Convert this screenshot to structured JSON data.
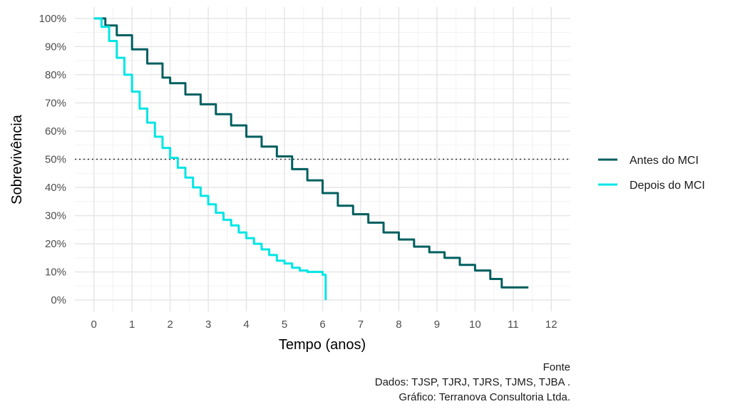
{
  "chart_data": {
    "type": "line",
    "xlabel": "Tempo (anos)",
    "ylabel": "Sobrevivência",
    "xlim": [
      -0.5,
      12.5
    ],
    "ylim": [
      -0.04,
      1.04
    ],
    "x_ticks": [
      "0",
      "1",
      "2",
      "3",
      "4",
      "5",
      "6",
      "7",
      "8",
      "9",
      "10",
      "11",
      "12"
    ],
    "y_ticks": [
      "0%",
      "10%",
      "20%",
      "30%",
      "40%",
      "50%",
      "60%",
      "70%",
      "80%",
      "90%",
      "100%"
    ],
    "reference_line": {
      "y": 0.5,
      "style": "dotted",
      "color": "#333333"
    },
    "grid": true,
    "legend_position": "right",
    "series": [
      {
        "name": "Antes do MCI",
        "color": "#005f5f",
        "x": [
          0,
          0.3,
          0.6,
          1.0,
          1.4,
          1.8,
          2.0,
          2.4,
          2.8,
          3.2,
          3.6,
          4.0,
          4.4,
          4.8,
          5.2,
          5.6,
          6.0,
          6.4,
          6.8,
          7.2,
          7.6,
          8.0,
          8.4,
          8.8,
          9.2,
          9.6,
          10.0,
          10.4,
          10.7,
          11.0,
          11.4
        ],
        "y": [
          1.0,
          0.975,
          0.94,
          0.89,
          0.84,
          0.79,
          0.77,
          0.73,
          0.695,
          0.66,
          0.62,
          0.58,
          0.545,
          0.51,
          0.465,
          0.425,
          0.38,
          0.335,
          0.305,
          0.275,
          0.24,
          0.215,
          0.19,
          0.17,
          0.15,
          0.125,
          0.105,
          0.075,
          0.045,
          0.045,
          0.045
        ]
      },
      {
        "name": "Depois do MCI",
        "color": "#00e5e5",
        "x": [
          0,
          0.2,
          0.4,
          0.6,
          0.8,
          1.0,
          1.2,
          1.4,
          1.6,
          1.8,
          2.0,
          2.2,
          2.4,
          2.6,
          2.8,
          3.0,
          3.2,
          3.4,
          3.6,
          3.8,
          4.0,
          4.2,
          4.4,
          4.6,
          4.8,
          5.0,
          5.2,
          5.4,
          5.6,
          5.8,
          6.0,
          6.05,
          6.08
        ],
        "y": [
          1.0,
          0.97,
          0.92,
          0.86,
          0.8,
          0.74,
          0.68,
          0.63,
          0.58,
          0.54,
          0.505,
          0.47,
          0.435,
          0.4,
          0.37,
          0.34,
          0.31,
          0.285,
          0.265,
          0.24,
          0.22,
          0.2,
          0.18,
          0.16,
          0.14,
          0.13,
          0.115,
          0.105,
          0.1,
          0.1,
          0.09,
          0.09,
          0.0
        ]
      }
    ]
  },
  "caption": {
    "line1": "Fonte",
    "line2": "Dados: TJSP, TJRJ, TJRS, TJMS, TJBA .",
    "line3": "Gráfico: Terranova Consultoria Ltda."
  }
}
